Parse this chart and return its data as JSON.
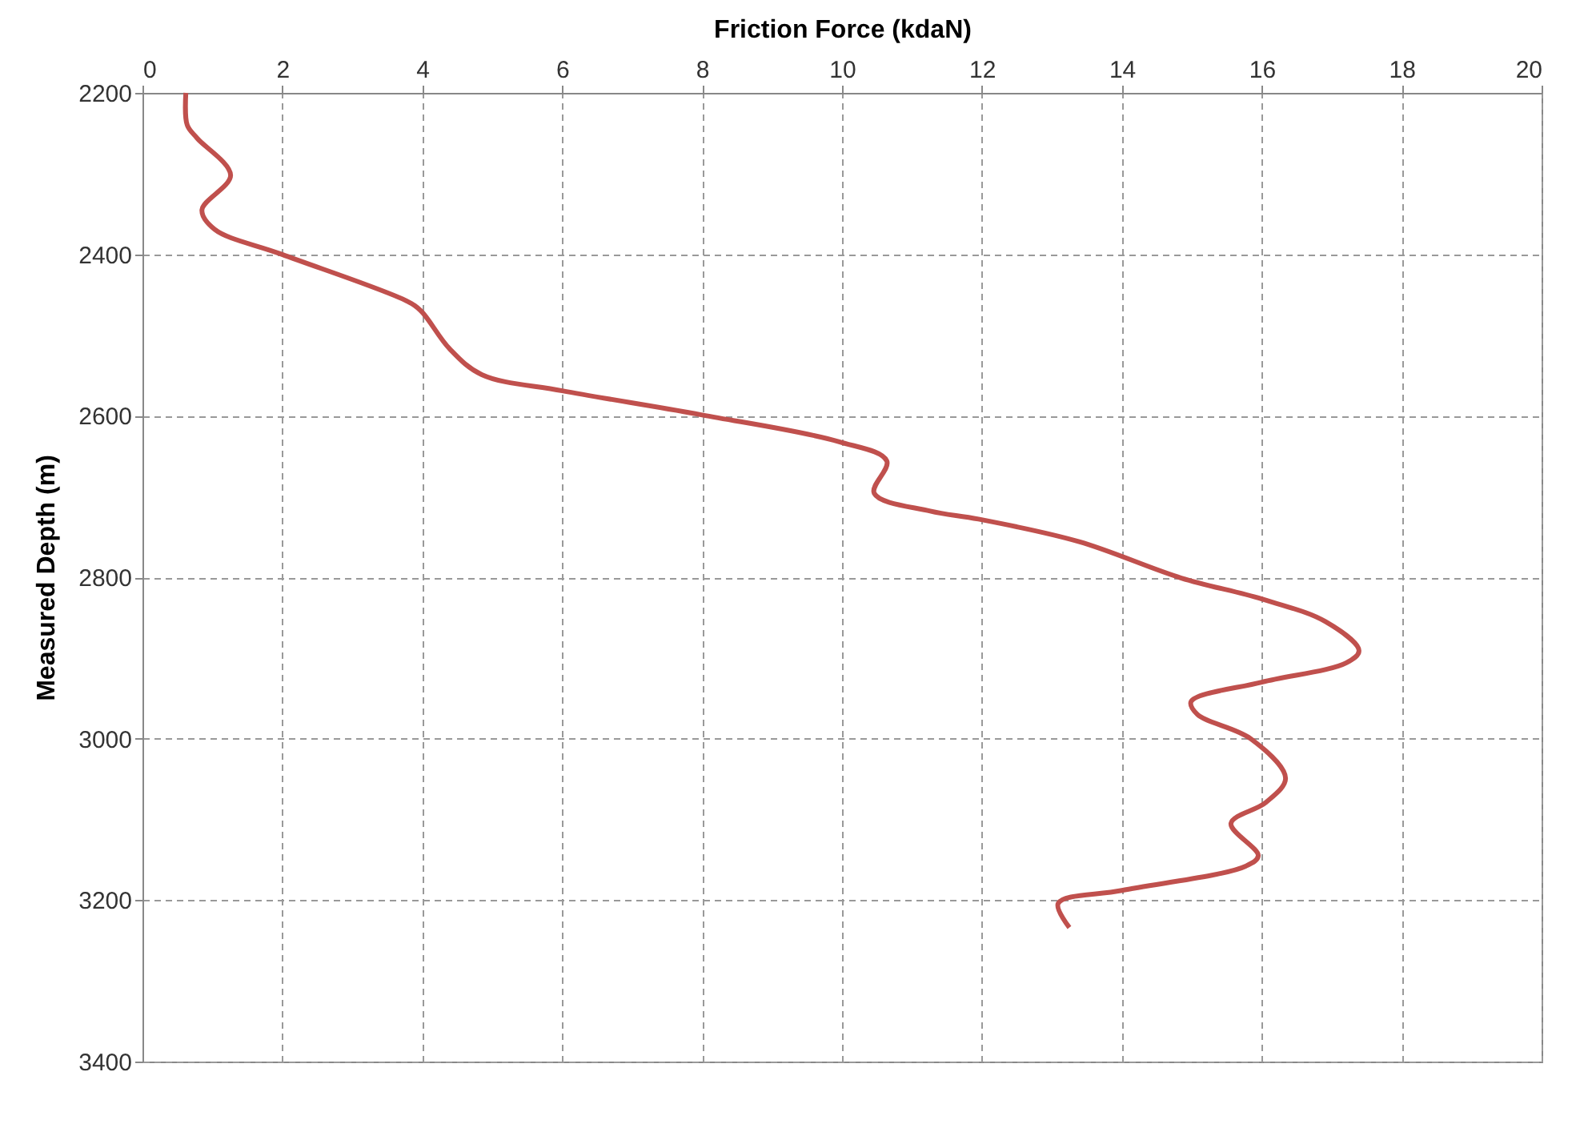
{
  "chart_data": {
    "type": "line",
    "xlabel": "Friction Force (kdaN)",
    "ylabel": "Measured Depth (m)",
    "xlim": [
      0,
      20
    ],
    "xticks": [
      0,
      2,
      4,
      6,
      8,
      10,
      12,
      14,
      16,
      18,
      20
    ],
    "ylim": [
      3400,
      2200
    ],
    "yticks": [
      2200,
      2400,
      2600,
      2800,
      3000,
      3200,
      3400
    ],
    "grid": true,
    "line_style": "solid",
    "marker": "none",
    "series": [
      {
        "color": "#c0504d",
        "x": [
          0.62,
          0.64,
          0.78,
          1.26,
          0.85,
          1.03,
          1.99,
          3.78,
          3.98,
          4.39,
          4.85,
          6.0,
          8.0,
          9.95,
          10.64,
          10.46,
          11.26,
          11.95,
          13.39,
          14.85,
          16.0,
          16.91,
          17.39,
          17.21,
          16.0,
          14.99,
          15.08,
          15.84,
          16.34,
          16.06,
          15.56,
          15.95,
          15.77,
          14.0,
          13.09,
          13.25
        ],
        "values": [
          2200,
          2240,
          2256,
          2302,
          2345,
          2369,
          2400,
          2458,
          2470,
          2517,
          2549,
          2569,
          2599,
          2632,
          2656,
          2696,
          2718,
          2728,
          2756,
          2801,
          2827,
          2855,
          2891,
          2906,
          2930,
          2954,
          2970,
          3000,
          3049,
          3079,
          3105,
          3145,
          3158,
          3188,
          3204,
          3234
        ]
      }
    ]
  }
}
